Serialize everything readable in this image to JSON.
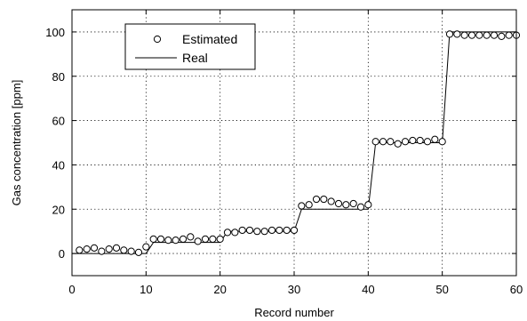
{
  "chart_data": {
    "type": "line",
    "title": "",
    "xlabel": "Record number",
    "ylabel": "Gas concentration [ppm]",
    "xlim": [
      0,
      60
    ],
    "ylim": [
      -10,
      110
    ],
    "xticks": [
      0,
      10,
      20,
      30,
      40,
      50,
      60
    ],
    "yticks": [
      0,
      20,
      40,
      60,
      80,
      100
    ],
    "grid": true,
    "legend": {
      "placement": "top-left"
    },
    "series": [
      {
        "name": "Estimated",
        "style": "markers-open-circle",
        "x": [
          1,
          2,
          3,
          4,
          5,
          6,
          7,
          8,
          9,
          10,
          11,
          12,
          13,
          14,
          15,
          16,
          17,
          18,
          19,
          20,
          21,
          22,
          23,
          24,
          25,
          26,
          27,
          28,
          29,
          30,
          31,
          32,
          33,
          34,
          35,
          36,
          37,
          38,
          39,
          40,
          41,
          42,
          43,
          44,
          45,
          46,
          47,
          48,
          49,
          50,
          51,
          52,
          53,
          54,
          55,
          56,
          57,
          58,
          59,
          60
        ],
        "values": [
          1.5,
          2,
          2.5,
          1,
          2,
          2.5,
          1.5,
          1,
          0.5,
          3,
          6.5,
          6.5,
          6,
          6,
          6.5,
          7.5,
          5.5,
          6.5,
          6.5,
          6.5,
          9.5,
          9.5,
          10.5,
          10.5,
          10,
          10,
          10.5,
          10.5,
          10.5,
          10.5,
          21.5,
          22,
          24.5,
          24.5,
          23.5,
          22.5,
          22,
          22.5,
          21,
          22,
          50.5,
          50.5,
          50.5,
          49.5,
          50.5,
          51,
          51,
          50.5,
          51.5,
          50.5,
          99,
          99,
          98.5,
          98.5,
          98.5,
          98.5,
          98.5,
          98,
          98.5,
          98.5
        ]
      },
      {
        "name": "Real",
        "style": "line",
        "x": [
          0,
          10,
          11,
          20,
          21,
          30,
          31,
          40,
          41,
          50,
          51,
          60
        ],
        "values": [
          0,
          0,
          5,
          5,
          10,
          10,
          20,
          20,
          50,
          50,
          100,
          100
        ]
      }
    ]
  }
}
